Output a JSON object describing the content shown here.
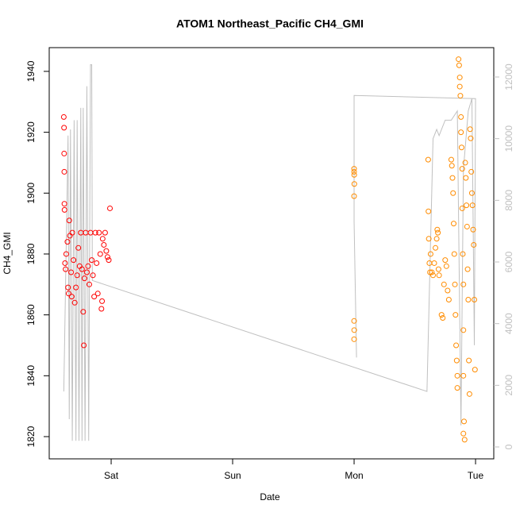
{
  "chart_data": {
    "type": "scatter",
    "title": "ATOM1 Northeast_Pacific CH4_GMI",
    "x_label": "Date",
    "y_label": "CH4_GMI",
    "xlim": [
      0.49,
      4.15
    ],
    "xticks": [
      {
        "value": 1,
        "label": "Sat"
      },
      {
        "value": 2,
        "label": "Sun"
      },
      {
        "value": 3,
        "label": "Mon"
      },
      {
        "value": 4,
        "label": "Tue"
      }
    ],
    "ylim": [
      1812.7,
      1947.8
    ],
    "yticks": [
      1820,
      1840,
      1860,
      1880,
      1900,
      1920,
      1940
    ],
    "y2lim": [
      -386,
      12953
    ],
    "y2ticks": [
      0,
      2000,
      4000,
      6000,
      8000,
      10000,
      12000
    ],
    "series": [
      {
        "type": "line",
        "axis": "y2",
        "color": "#c0c0c0",
        "x": [
          0.61,
          0.645,
          0.655,
          0.665,
          0.68,
          0.695,
          0.71,
          0.72,
          0.735,
          0.75,
          0.76,
          0.77,
          0.785,
          0.8,
          0.815,
          0.83,
          0.84,
          0.845,
          3.6,
          3.65,
          3.68,
          3.7,
          3.75,
          3.8,
          3.85,
          3.88,
          3.9,
          3.94,
          3.97,
          3.99,
          4.0,
          3.0,
          3.0,
          3.02
        ],
        "values": [
          1800,
          10100,
          900,
          10300,
          200,
          10600,
          200,
          10600,
          200,
          11000,
          200,
          11000,
          200,
          11700,
          200,
          12400,
          12400,
          5400,
          1800,
          10000,
          10300,
          10100,
          10600,
          10600,
          10900,
          700,
          9000,
          10900,
          11300,
          3300,
          11300,
          11400,
          7300,
          2900
        ]
      },
      {
        "type": "scatter",
        "color": "#ff0000",
        "x": [
          0.61,
          0.612,
          0.613,
          0.614,
          0.615,
          0.616,
          0.62,
          0.625,
          0.63,
          0.64,
          0.645,
          0.65,
          0.655,
          0.66,
          0.67,
          0.675,
          0.68,
          0.69,
          0.7,
          0.71,
          0.72,
          0.73,
          0.74,
          0.75,
          0.76,
          0.77,
          0.775,
          0.78,
          0.79,
          0.8,
          0.81,
          0.82,
          0.83,
          0.84,
          0.85,
          0.86,
          0.87,
          0.88,
          0.89,
          0.9,
          0.91,
          0.92,
          0.925,
          0.93,
          0.94,
          0.95,
          0.96,
          0.97,
          0.98,
          0.99
        ],
        "values": [
          1925,
          1921.5,
          1913,
          1907,
          1896.5,
          1894.5,
          1877,
          1875,
          1880,
          1884,
          1869,
          1867,
          1891,
          1886,
          1874,
          1866,
          1887,
          1878,
          1864,
          1869,
          1873,
          1882,
          1876,
          1887,
          1875,
          1861,
          1850,
          1872,
          1887,
          1874,
          1876,
          1870,
          1887,
          1878,
          1873,
          1866,
          1887,
          1877,
          1867,
          1887,
          1880,
          1862,
          1864.5,
          1885,
          1883,
          1887,
          1881,
          1879,
          1878,
          1895
        ]
      },
      {
        "type": "scatter",
        "color": "#ff8c00",
        "x": [
          3.0,
          3.0,
          3.001,
          3.002,
          3.0,
          3.0,
          3.001,
          3.0,
          3.61,
          3.612,
          3.615,
          3.62,
          3.625,
          3.63,
          3.64,
          3.65,
          3.66,
          3.67,
          3.68,
          3.685,
          3.69,
          3.695,
          3.7,
          3.72,
          3.73,
          3.74,
          3.75,
          3.76,
          3.77,
          3.78,
          3.8,
          3.805,
          3.81,
          3.815,
          3.82,
          3.825,
          3.83,
          3.835,
          3.84,
          3.845,
          3.85,
          3.85,
          3.86,
          3.865,
          3.87,
          3.87,
          3.875,
          3.88,
          3.88,
          3.885,
          3.89,
          3.89,
          3.895,
          3.9,
          3.9,
          3.9,
          3.905,
          3.9,
          3.91,
          3.915,
          3.92,
          3.925,
          3.93,
          3.935,
          3.94,
          3.945,
          3.95,
          3.955,
          3.96,
          3.965,
          3.97,
          3.975,
          3.98,
          3.985,
          3.99,
          3.995
        ],
        "values": [
          1908,
          1907,
          1906,
          1903,
          1899,
          1858,
          1855,
          1852,
          1911,
          1894,
          1885,
          1877,
          1874,
          1880,
          1874,
          1873,
          1877,
          1882,
          1885,
          1888,
          1887,
          1875,
          1873,
          1860,
          1859,
          1870,
          1878,
          1876,
          1868,
          1865,
          1911,
          1909,
          1905,
          1900,
          1890,
          1880,
          1870,
          1860,
          1850,
          1845,
          1840,
          1836,
          1944,
          1942,
          1938,
          1935,
          1932,
          1925,
          1920,
          1915,
          1908,
          1895,
          1880,
          1870,
          1855,
          1840,
          1825,
          1821,
          1819,
          1910,
          1905,
          1896,
          1889,
          1875,
          1865,
          1845,
          1834,
          1921,
          1918,
          1907,
          1900,
          1896,
          1888,
          1883,
          1865,
          1842
        ]
      }
    ]
  }
}
